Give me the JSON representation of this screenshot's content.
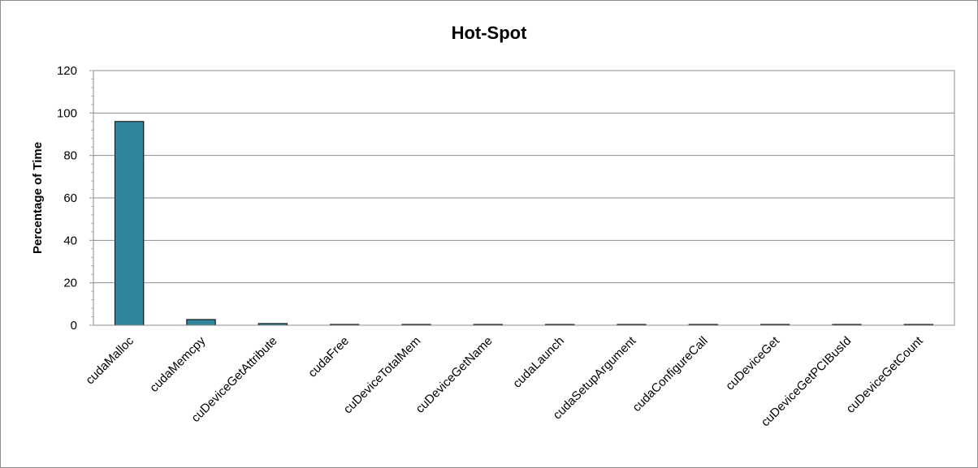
{
  "chart_data": {
    "type": "bar",
    "title": "Hot-Spot",
    "xlabel": "",
    "ylabel": "Percentage of Time",
    "ylim": [
      0,
      120
    ],
    "yticks": [
      0,
      20,
      40,
      60,
      80,
      100,
      120
    ],
    "grid": true,
    "legend": "none",
    "bar_color": "#31859c",
    "categories": [
      "cudaMalloc",
      "cudaMemcpy",
      "cuDeviceGetAttribute",
      "cudaFree",
      "cuDeviceTotalMem",
      "cuDeviceGetName",
      "cudaLaunch",
      "cudaSetupArgument",
      "cudaConfigureCall",
      "cuDeviceGet",
      "cuDeviceGetPCIBusId",
      "cuDeviceGetCount"
    ],
    "values": [
      96,
      2.7,
      0.8,
      0.3,
      0.25,
      0.2,
      0.15,
      0.12,
      0.1,
      0.08,
      0.05,
      0.03
    ]
  }
}
